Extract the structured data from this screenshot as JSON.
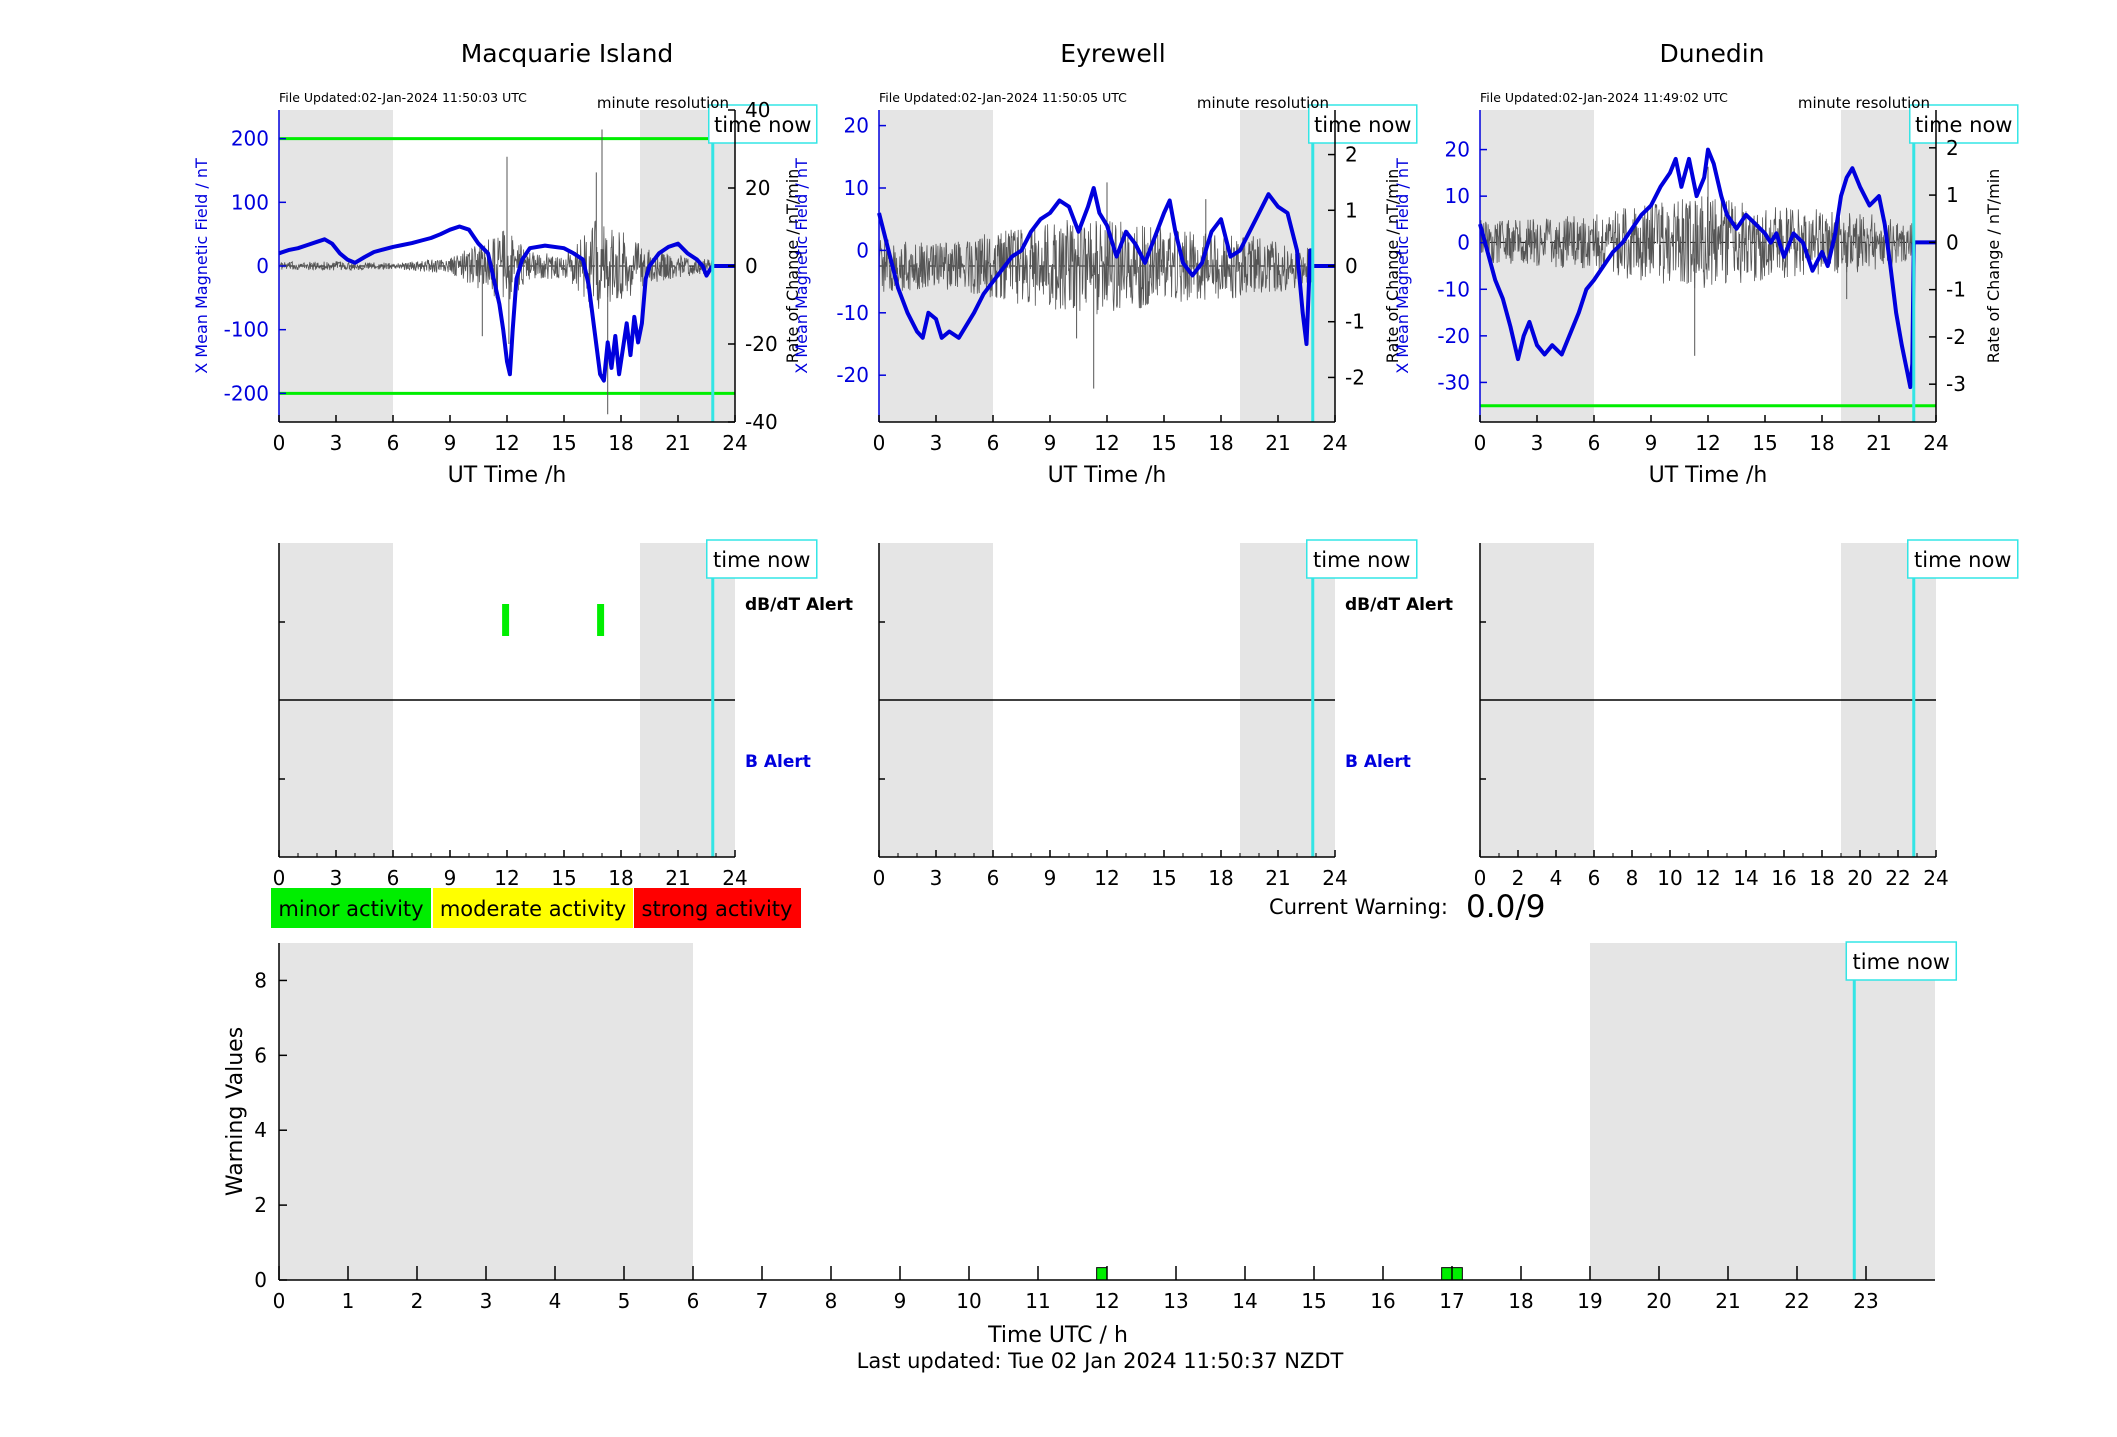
{
  "colors": {
    "shade": "#e5e5e5",
    "field": "#0000dd",
    "rate": "#555555",
    "threshold": "#00ee00",
    "now": "#33e5e5",
    "minor": "#00ee00",
    "moderate": "#ffff00",
    "strong": "#ff0000"
  },
  "stations": [
    {
      "name": "Macquarie Island",
      "file_updated": "File Updated:02-Jan-2024 11:50:03 UTC",
      "resolution": "minute resolution",
      "time_now_label": "time now",
      "ylabel_left": "X Mean Magnetic Field / nT",
      "ylabel_right": "Rate of Change / nT/min",
      "xlabel": "UT Time /h",
      "ylim_left": [
        -245,
        245
      ],
      "ylim_right": [
        -40,
        40
      ],
      "yticks_left": [
        -200,
        -100,
        0,
        100,
        200
      ],
      "yticks_right": [
        -40,
        -20,
        0,
        20,
        40
      ],
      "thresholds": [
        200,
        -200
      ],
      "now_hour": 22.83,
      "field_series": [
        [
          0,
          20
        ],
        [
          0.5,
          25
        ],
        [
          1,
          28
        ],
        [
          1.5,
          33
        ],
        [
          2,
          38
        ],
        [
          2.4,
          42
        ],
        [
          2.8,
          35
        ],
        [
          3.2,
          20
        ],
        [
          3.6,
          10
        ],
        [
          4,
          5
        ],
        [
          4.5,
          14
        ],
        [
          5,
          22
        ],
        [
          5.5,
          26
        ],
        [
          6,
          30
        ],
        [
          6.5,
          33
        ],
        [
          7,
          36
        ],
        [
          7.5,
          40
        ],
        [
          8,
          44
        ],
        [
          8.5,
          50
        ],
        [
          9,
          57
        ],
        [
          9.5,
          62
        ],
        [
          10,
          57
        ],
        [
          10.5,
          35
        ],
        [
          11,
          20
        ],
        [
          11.3,
          -20
        ],
        [
          11.6,
          -60
        ],
        [
          11.8,
          -100
        ],
        [
          12,
          -150
        ],
        [
          12.15,
          -170
        ],
        [
          12.3,
          -100
        ],
        [
          12.5,
          -20
        ],
        [
          12.8,
          10
        ],
        [
          13.2,
          28
        ],
        [
          14,
          32
        ],
        [
          15,
          28
        ],
        [
          15.5,
          20
        ],
        [
          16,
          10
        ],
        [
          16.3,
          -30
        ],
        [
          16.6,
          -100
        ],
        [
          16.9,
          -170
        ],
        [
          17.1,
          -180
        ],
        [
          17.3,
          -120
        ],
        [
          17.5,
          -160
        ],
        [
          17.7,
          -110
        ],
        [
          17.9,
          -170
        ],
        [
          18.1,
          -130
        ],
        [
          18.3,
          -90
        ],
        [
          18.5,
          -140
        ],
        [
          18.7,
          -80
        ],
        [
          18.9,
          -120
        ],
        [
          19.1,
          -90
        ],
        [
          19.3,
          -20
        ],
        [
          19.5,
          0
        ],
        [
          20,
          20
        ],
        [
          20.5,
          30
        ],
        [
          21,
          35
        ],
        [
          21.5,
          20
        ],
        [
          22,
          10
        ],
        [
          22.3,
          0
        ],
        [
          22.5,
          -15
        ],
        [
          22.7,
          -5
        ],
        [
          22.83,
          0
        ]
      ],
      "rate_amp": [
        [
          0,
          1
        ],
        [
          3,
          1.2
        ],
        [
          6,
          0.8
        ],
        [
          9,
          2
        ],
        [
          10.5,
          6
        ],
        [
          12,
          10
        ],
        [
          13,
          4
        ],
        [
          15,
          3
        ],
        [
          16.5,
          12
        ],
        [
          18,
          9
        ],
        [
          19.5,
          5
        ],
        [
          21,
          3
        ],
        [
          22.8,
          2
        ]
      ],
      "rate_spikes": [
        [
          12,
          28
        ],
        [
          12.1,
          -20
        ],
        [
          17,
          35
        ],
        [
          17.3,
          -38
        ],
        [
          16.7,
          24
        ],
        [
          10.7,
          -18
        ]
      ],
      "dbdt_alerts": [
        {
          "hour": 11.9,
          "level": "minor"
        },
        {
          "hour": 16.9,
          "level": "minor"
        }
      ],
      "b_alerts": [],
      "dbdt_label": "dB/dT Alert",
      "b_label": "B Alert"
    },
    {
      "name": "Eyrewell",
      "file_updated": "File Updated:02-Jan-2024 11:50:05 UTC",
      "resolution": "minute resolution",
      "time_now_label": "time now",
      "ylabel_left": "X Mean Magnetic Field / nT",
      "ylabel_right": "Rate of Change / nT/min",
      "xlabel": "UT Time /h",
      "ylim_left": [
        -27.5,
        22.5
      ],
      "ylim_right": [
        -2.8,
        2.8
      ],
      "yticks_left": [
        -20,
        -10,
        0,
        10,
        20
      ],
      "yticks_right": [
        -2,
        -1,
        0,
        1,
        2
      ],
      "thresholds": [],
      "now_hour": 22.83,
      "field_series": [
        [
          0,
          6
        ],
        [
          0.5,
          0
        ],
        [
          1,
          -6
        ],
        [
          1.5,
          -10
        ],
        [
          2,
          -13
        ],
        [
          2.3,
          -14
        ],
        [
          2.6,
          -10
        ],
        [
          3,
          -11
        ],
        [
          3.3,
          -14
        ],
        [
          3.7,
          -13
        ],
        [
          4.2,
          -14
        ],
        [
          4.6,
          -12
        ],
        [
          5,
          -10
        ],
        [
          5.5,
          -7
        ],
        [
          6,
          -5
        ],
        [
          6.5,
          -3
        ],
        [
          7,
          -1
        ],
        [
          7.5,
          0
        ],
        [
          8,
          3
        ],
        [
          8.5,
          5
        ],
        [
          9,
          6
        ],
        [
          9.5,
          8
        ],
        [
          10,
          7
        ],
        [
          10.5,
          3
        ],
        [
          11,
          7
        ],
        [
          11.3,
          10
        ],
        [
          11.6,
          6
        ],
        [
          12,
          4
        ],
        [
          12.5,
          -1
        ],
        [
          13,
          3
        ],
        [
          13.5,
          1
        ],
        [
          14,
          -2
        ],
        [
          14.5,
          2
        ],
        [
          15,
          6
        ],
        [
          15.3,
          8
        ],
        [
          15.6,
          3
        ],
        [
          16,
          -2
        ],
        [
          16.5,
          -4
        ],
        [
          17,
          -2
        ],
        [
          17.5,
          3
        ],
        [
          18,
          5
        ],
        [
          18.5,
          -1
        ],
        [
          19,
          0
        ],
        [
          19.5,
          3
        ],
        [
          20,
          6
        ],
        [
          20.5,
          9
        ],
        [
          21,
          7
        ],
        [
          21.5,
          6
        ],
        [
          22,
          0
        ],
        [
          22.3,
          -10
        ],
        [
          22.5,
          -15
        ],
        [
          22.7,
          0
        ],
        [
          22.83,
          0
        ]
      ],
      "rate_amp": [
        [
          0,
          0.5
        ],
        [
          3,
          0.4
        ],
        [
          6,
          0.6
        ],
        [
          9,
          0.8
        ],
        [
          12,
          0.9
        ],
        [
          15,
          0.7
        ],
        [
          18,
          0.6
        ],
        [
          21,
          0.5
        ],
        [
          22.8,
          0.3
        ]
      ],
      "rate_spikes": [
        [
          11.3,
          -2.2
        ],
        [
          10.4,
          -1.3
        ],
        [
          12,
          1.5
        ],
        [
          17.2,
          1.2
        ]
      ],
      "dbdt_alerts": [],
      "b_alerts": [],
      "dbdt_label": "dB/dT Alert",
      "b_label": "B Alert"
    },
    {
      "name": "Dunedin",
      "file_updated": "File Updated:02-Jan-2024 11:49:02 UTC",
      "resolution": "minute resolution",
      "time_now_label": "time now",
      "ylabel_left": "X Mean Magnetic Field / nT",
      "ylabel_right": "Rate of Change / nT/min",
      "xlabel": "UT Time /h",
      "ylim_left": [
        -38.5,
        28.5
      ],
      "ylim_right": [
        -3.8,
        2.8
      ],
      "yticks_left": [
        -30,
        -20,
        -10,
        0,
        10,
        20
      ],
      "yticks_right": [
        -3,
        -2,
        -1,
        0,
        1,
        2
      ],
      "thresholds": [
        -35
      ],
      "now_hour": 22.83,
      "field_series": [
        [
          0,
          4
        ],
        [
          0.4,
          -2
        ],
        [
          0.8,
          -8
        ],
        [
          1.2,
          -12
        ],
        [
          1.6,
          -18
        ],
        [
          2,
          -25
        ],
        [
          2.3,
          -20
        ],
        [
          2.6,
          -17
        ],
        [
          3,
          -22
        ],
        [
          3.4,
          -24
        ],
        [
          3.8,
          -22
        ],
        [
          4.3,
          -24
        ],
        [
          4.7,
          -20
        ],
        [
          5.2,
          -15
        ],
        [
          5.6,
          -10
        ],
        [
          6,
          -8
        ],
        [
          6.5,
          -5
        ],
        [
          7,
          -2
        ],
        [
          7.5,
          0
        ],
        [
          8,
          3
        ],
        [
          8.5,
          6
        ],
        [
          9,
          8
        ],
        [
          9.5,
          12
        ],
        [
          10,
          15
        ],
        [
          10.3,
          18
        ],
        [
          10.6,
          12
        ],
        [
          11,
          18
        ],
        [
          11.4,
          10
        ],
        [
          11.8,
          14
        ],
        [
          12,
          20
        ],
        [
          12.3,
          17
        ],
        [
          12.7,
          10
        ],
        [
          13,
          6
        ],
        [
          13.5,
          3
        ],
        [
          14,
          6
        ],
        [
          14.5,
          4
        ],
        [
          15,
          2
        ],
        [
          15.3,
          0
        ],
        [
          15.6,
          2
        ],
        [
          16,
          -3
        ],
        [
          16.5,
          2
        ],
        [
          17,
          0
        ],
        [
          17.5,
          -6
        ],
        [
          18,
          -2
        ],
        [
          18.3,
          -5
        ],
        [
          18.7,
          2
        ],
        [
          19,
          10
        ],
        [
          19.3,
          14
        ],
        [
          19.6,
          16
        ],
        [
          20,
          12
        ],
        [
          20.5,
          8
        ],
        [
          21,
          10
        ],
        [
          21.3,
          4
        ],
        [
          21.6,
          -5
        ],
        [
          21.9,
          -15
        ],
        [
          22.2,
          -22
        ],
        [
          22.5,
          -28
        ],
        [
          22.65,
          -31
        ],
        [
          22.75,
          -26
        ],
        [
          22.83,
          0
        ]
      ],
      "rate_amp": [
        [
          0,
          0.5
        ],
        [
          3,
          0.5
        ],
        [
          6,
          0.6
        ],
        [
          9,
          0.9
        ],
        [
          12,
          1.0
        ],
        [
          15,
          0.8
        ],
        [
          18,
          0.7
        ],
        [
          21,
          0.6
        ],
        [
          22.8,
          0.4
        ]
      ],
      "rate_spikes": [
        [
          11.3,
          -2.4
        ],
        [
          12,
          1.6
        ],
        [
          19.3,
          -1.2
        ]
      ],
      "dbdt_alerts": [],
      "b_alerts": [],
      "dbdt_label": "dB/dT Alert",
      "b_label": "B Alert"
    }
  ],
  "alert_xticks": {
    "left": [
      0,
      3,
      6,
      9,
      12,
      15,
      18,
      21,
      24
    ],
    "center": [
      0,
      3,
      6,
      9,
      12,
      15,
      18,
      21,
      24
    ],
    "right": [
      0,
      2,
      4,
      6,
      8,
      10,
      12,
      14,
      16,
      18,
      20,
      22,
      24
    ]
  },
  "legend": [
    {
      "label": "minor activity",
      "level": "minor"
    },
    {
      "label": "moderate activity",
      "level": "moderate"
    },
    {
      "label": "strong activity",
      "level": "strong"
    }
  ],
  "current_warning": {
    "label": "Current Warning:",
    "value": "0.0/9"
  },
  "chart_data": {
    "type": "bar",
    "title": "",
    "xlabel": "Time UTC / h",
    "ylabel": "Warning Values",
    "xlim": [
      0,
      24
    ],
    "ylim": [
      0,
      9
    ],
    "xticks": [
      0,
      1,
      2,
      3,
      4,
      5,
      6,
      7,
      8,
      9,
      10,
      11,
      12,
      13,
      14,
      15,
      16,
      17,
      18,
      19,
      20,
      21,
      22,
      23
    ],
    "yticks": [
      0,
      2,
      4,
      6,
      8
    ],
    "night_shading": [
      [
        0,
        6
      ],
      [
        19,
        24
      ]
    ],
    "time_now_hour": 22.83,
    "time_now_label": "time now",
    "bars": [
      {
        "start": 11.85,
        "end": 12.0,
        "value": 0.33,
        "level": "minor"
      },
      {
        "start": 16.85,
        "end": 17.15,
        "value": 0.33,
        "level": "minor"
      }
    ]
  },
  "footer": "Last updated: Tue 02 Jan 2024 11:50:37 NZDT"
}
